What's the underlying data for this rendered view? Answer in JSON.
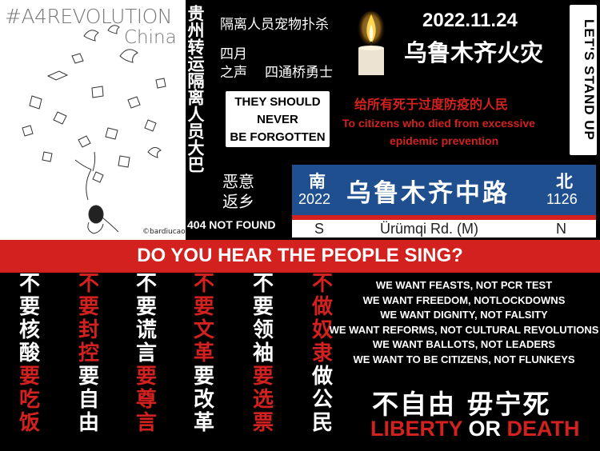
{
  "art": {
    "hashtag": "#A4REVOLUTION",
    "country": "China",
    "credit": "©bardiucao"
  },
  "vertical_title": "贵州转运隔离人员大巴",
  "left_labels": {
    "quarantine": "隔离人员宠物扑杀",
    "april_1": "四月",
    "april_2": "之声",
    "sitong": "四通桥勇士",
    "malicious_1": "恶意",
    "malicious_2": "返乡",
    "not_found": "404 NOT FOUND"
  },
  "never_forgotten": [
    "THEY SHOULD",
    "NEVER",
    "BE FORGOTTEN"
  ],
  "fire": {
    "date": "2022.11.24",
    "title": "乌鲁木齐火灾",
    "dedication_zh": "给所有死于过度防疫的人民",
    "dedication_en_1": "To citizens who died from excessive",
    "dedication_en_2": "epidemic prevention"
  },
  "stand_up": "LET'S STAND UP",
  "street_sign": {
    "south": "南",
    "south_num": "2022",
    "road": "乌鲁木齐中路",
    "north": "北",
    "north_num": "1126",
    "s": "S",
    "road_en": "Ürümqi Rd. (M)",
    "n": "N"
  },
  "banner": "DO YOU HEAR THE PEOPLE SING?",
  "columns": [
    {
      "chars": [
        "不",
        "要",
        "核",
        "酸",
        "要",
        "吃",
        "饭"
      ],
      "colors": [
        "w",
        "w",
        "w",
        "w",
        "r",
        "r",
        "r"
      ]
    },
    {
      "chars": [
        "不",
        "要",
        "封",
        "控",
        "要",
        "自",
        "由"
      ],
      "colors": [
        "r",
        "r",
        "r",
        "r",
        "w",
        "w",
        "w"
      ]
    },
    {
      "chars": [
        "不",
        "要",
        "谎",
        "言",
        "要",
        "尊",
        "言"
      ],
      "colors": [
        "w",
        "w",
        "w",
        "w",
        "r",
        "r",
        "r"
      ]
    },
    {
      "chars": [
        "不",
        "要",
        "文",
        "革",
        "要",
        "改",
        "革"
      ],
      "colors": [
        "r",
        "r",
        "r",
        "r",
        "w",
        "w",
        "w"
      ]
    },
    {
      "chars": [
        "不",
        "要",
        "领",
        "袖",
        "要",
        "选",
        "票"
      ],
      "colors": [
        "w",
        "w",
        "w",
        "w",
        "r",
        "r",
        "r"
      ]
    },
    {
      "chars": [
        "不",
        "做",
        "奴",
        "隶",
        "做",
        "公",
        "民"
      ],
      "colors": [
        "r",
        "r",
        "r",
        "r",
        "w",
        "w",
        "w"
      ]
    }
  ],
  "wants": [
    "WE WANT FEASTS, NOT PCR TEST",
    "WE WANT FREEDOM, NOTLOCKDOWNS",
    "WE WANT DIGNITY, NOT FALSITY",
    "WE WANT REFORMS, NOT CULTURAL REVOLUTIONS",
    "WE WANT BALLOTS, NOT LEADERS",
    "WE WANT TO BE CITIZENS, NOT FLUNKEYS"
  ],
  "liberty": {
    "zh": "不自由 毋宁死",
    "en_1": "LIBERTY",
    "en_or": "OR",
    "en_2": "DEATH"
  },
  "colors": {
    "red": "#d3211f",
    "sign_blue": "#1f4f8f",
    "black": "#000000",
    "white": "#ffffff"
  }
}
